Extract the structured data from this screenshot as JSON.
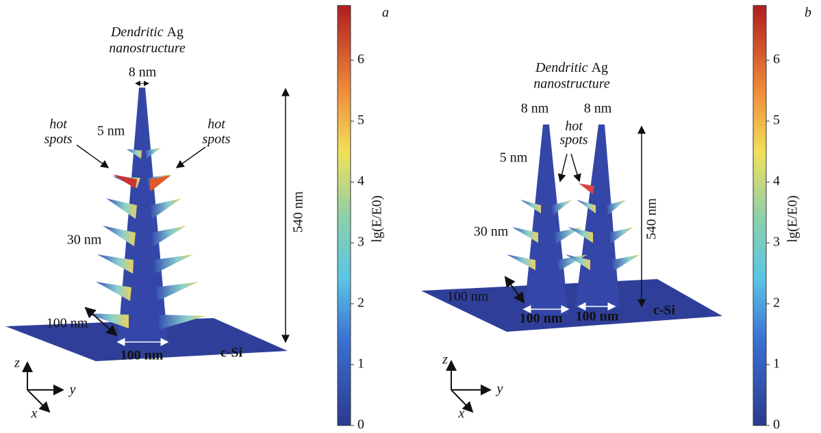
{
  "panels": [
    {
      "letter": "a",
      "title_italic": "Dendritic",
      "title_rest": "Ag",
      "subtitle": "nanostructure",
      "annotations": [
        "8 nm",
        "5 nm",
        "hot",
        "spots",
        "hot",
        "spots",
        "30 nm",
        "100 nm",
        "100 nm",
        "c-Si",
        "540 nm"
      ],
      "axes": [
        "z",
        "y",
        "x"
      ],
      "colorbar": {
        "label": "lg(E/E0)",
        "lim": [
          0,
          6.9
        ],
        "ticks": [
          0,
          1,
          2,
          3,
          4,
          5,
          6
        ]
      }
    },
    {
      "letter": "b",
      "title_italic": "Dendritic",
      "title_rest": "Ag",
      "subtitle": "nanostructure",
      "annotations": [
        "8 nm",
        "8 nm",
        "hot",
        "spots",
        "5 nm",
        "30 nm",
        "100 nm",
        "100 nm",
        "100 nm",
        "c-Si",
        "540 nm"
      ],
      "axes": [
        "z",
        "y",
        "x"
      ],
      "colorbar": {
        "label": "lg(E/E0)",
        "lim": [
          0,
          6.9
        ],
        "ticks": [
          0,
          1,
          2,
          3,
          4,
          5,
          6
        ]
      }
    }
  ]
}
